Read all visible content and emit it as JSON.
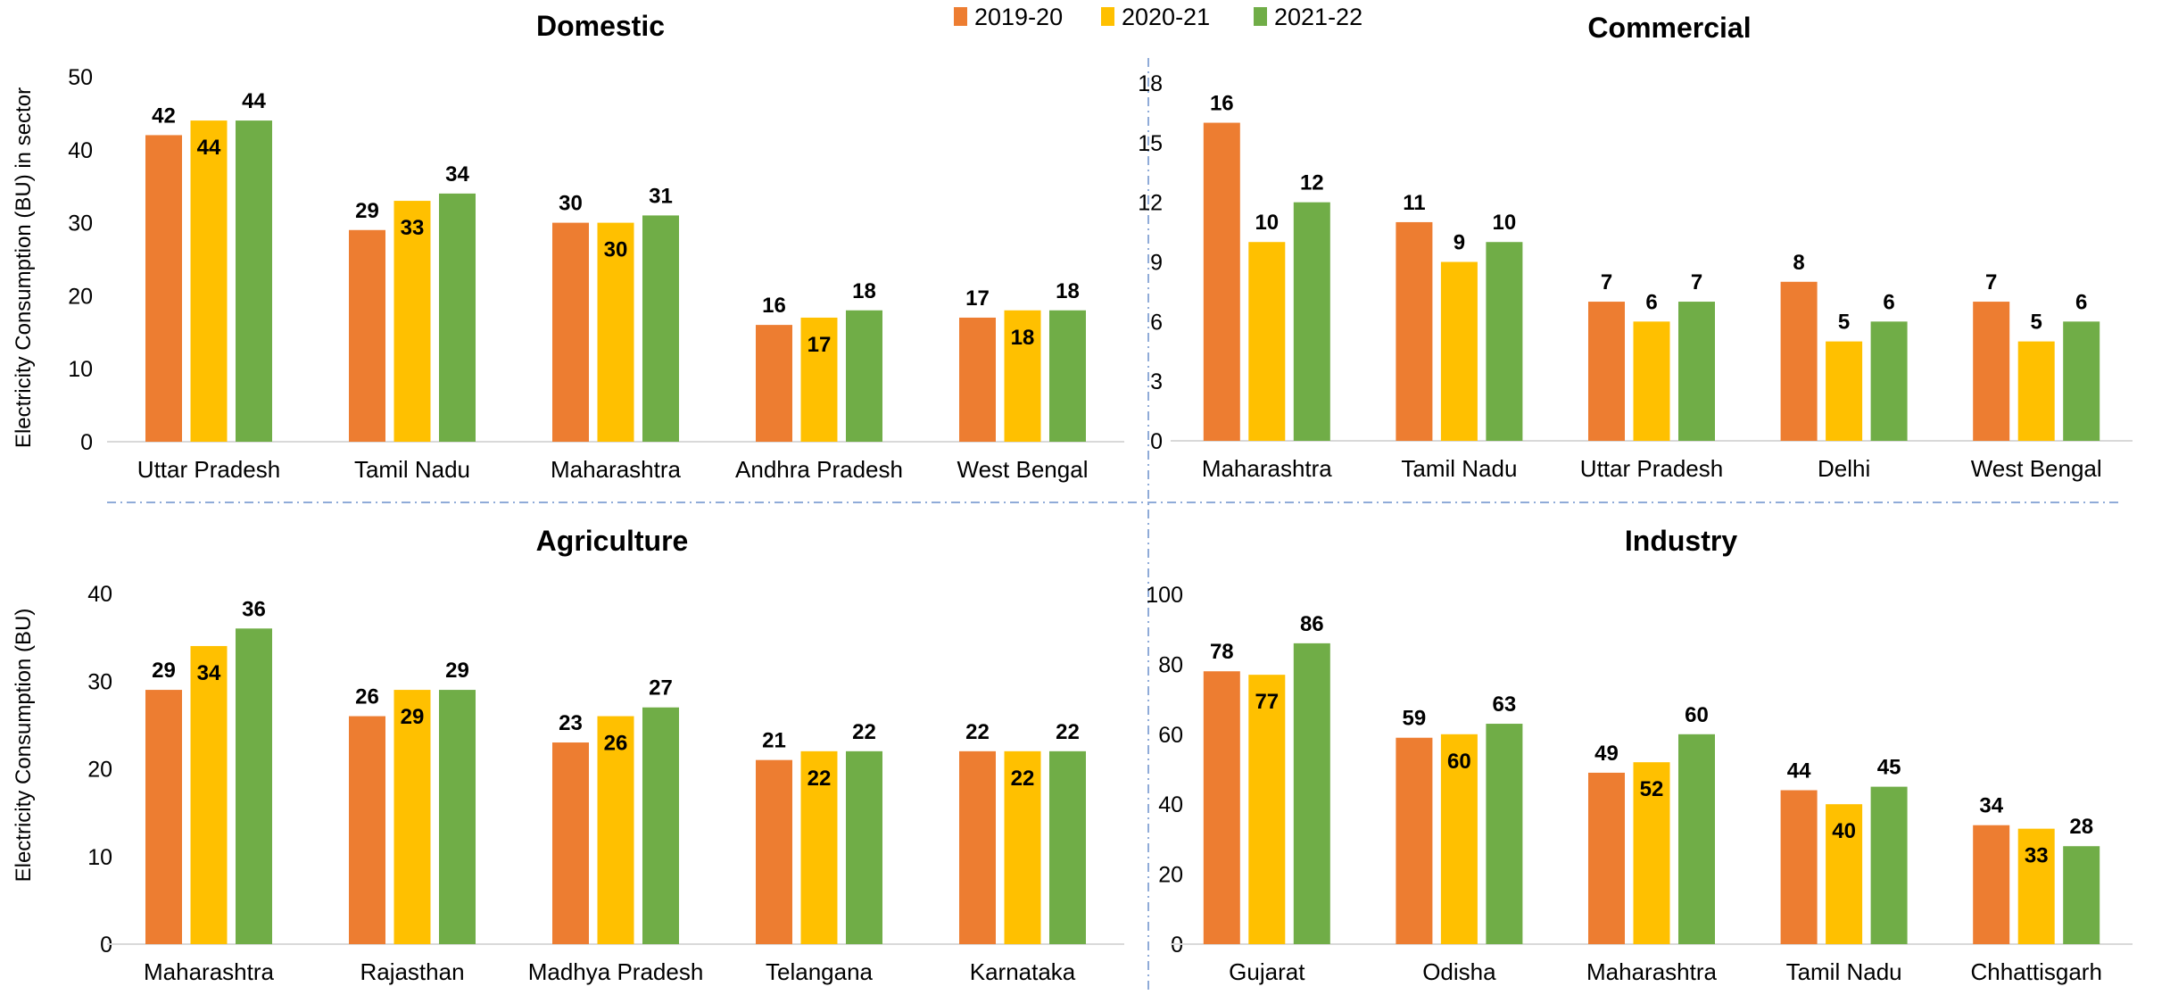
{
  "legend": {
    "items": [
      {
        "label": "2019-20",
        "color": "#ED7D31"
      },
      {
        "label": "2020-21",
        "color": "#FFC000"
      },
      {
        "label": "2021-22",
        "color": "#70AD47"
      }
    ],
    "placement": "top-center"
  },
  "y_labels": {
    "top": "Electricity Consumption (BU) in sector",
    "bottom": "Electricity Consumption (BU)"
  },
  "grid": false,
  "chart_data": [
    {
      "type": "bar",
      "title": "Domestic",
      "categories": [
        "Uttar Pradesh",
        "Tamil Nadu",
        "Maharashtra",
        "Andhra Pradesh",
        "West Bengal"
      ],
      "series": [
        {
          "name": "2019-20",
          "values": [
            42,
            29,
            30,
            16,
            17
          ]
        },
        {
          "name": "2020-21",
          "values": [
            44,
            33,
            30,
            17,
            18
          ]
        },
        {
          "name": "2021-22",
          "values": [
            44,
            34,
            31,
            18,
            18
          ]
        }
      ],
      "ylim": [
        0,
        50
      ],
      "yticks": [
        0,
        10,
        20,
        30,
        40,
        50
      ]
    },
    {
      "type": "bar",
      "title": "Commercial",
      "categories": [
        "Maharashtra",
        "Tamil Nadu",
        "Uttar Pradesh",
        "Delhi",
        "West Bengal"
      ],
      "series": [
        {
          "name": "2019-20",
          "values": [
            16,
            11,
            7,
            8,
            7
          ]
        },
        {
          "name": "2020-21",
          "values": [
            10,
            9,
            6,
            5,
            5
          ]
        },
        {
          "name": "2021-22",
          "values": [
            12,
            10,
            7,
            6,
            6
          ]
        }
      ],
      "ylim": [
        0,
        18
      ],
      "yticks": [
        0,
        3,
        6,
        9,
        12,
        15,
        18
      ]
    },
    {
      "type": "bar",
      "title": "Agriculture",
      "categories": [
        "Maharashtra",
        "Rajasthan",
        "Madhya Pradesh",
        "Telangana",
        "Karnataka"
      ],
      "series": [
        {
          "name": "2019-20",
          "values": [
            29,
            26,
            23,
            21,
            22
          ]
        },
        {
          "name": "2020-21",
          "values": [
            34,
            29,
            26,
            22,
            22
          ]
        },
        {
          "name": "2021-22",
          "values": [
            36,
            29,
            27,
            22,
            22
          ]
        }
      ],
      "ylim": [
        0,
        40
      ],
      "yticks": [
        0,
        10,
        20,
        30,
        40
      ]
    },
    {
      "type": "bar",
      "title": "Industry",
      "categories": [
        "Gujarat",
        "Odisha",
        "Maharashtra",
        "Tamil Nadu",
        "Chhattisgarh"
      ],
      "series": [
        {
          "name": "2019-20",
          "values": [
            78,
            59,
            49,
            44,
            34
          ]
        },
        {
          "name": "2020-21",
          "values": [
            77,
            60,
            52,
            40,
            33
          ]
        },
        {
          "name": "2021-22",
          "values": [
            86,
            63,
            60,
            45,
            28
          ]
        }
      ],
      "ylim": [
        0,
        100
      ],
      "yticks": [
        0,
        20,
        40,
        60,
        80,
        100
      ]
    }
  ]
}
